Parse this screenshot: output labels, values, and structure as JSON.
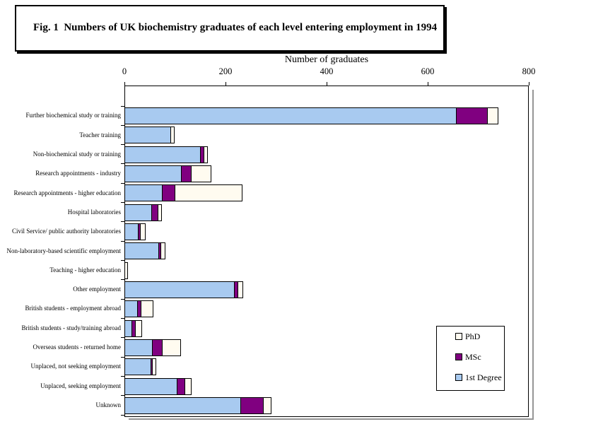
{
  "title": "Fig. 1  Numbers of UK biochemistry graduates of each level entering employment in 1994",
  "axis": {
    "title": "Number of graduates"
  },
  "legend": [
    {
      "label": "PhD",
      "color": "#FFFBF0"
    },
    {
      "label": "MSc",
      "color": "#800080"
    },
    {
      "label": "1st Degree",
      "color": "#A8CAF0"
    }
  ],
  "colors": {
    "bar_border": "#000000",
    "plot_shadow": "#969696",
    "background": "#FFFFFF",
    "phd": "#FFFBF0",
    "msc": "#800080",
    "first_degree": "#A8CAF0"
  },
  "chart_data": {
    "type": "bar",
    "orientation": "horizontal",
    "stacked": true,
    "title": "Fig. 1  Numbers of UK biochemistry graduates of each level entering employment in 1994",
    "xlabel": "Number of graduates",
    "xlim": [
      0,
      800
    ],
    "x_ticks": [
      0,
      200,
      400,
      600,
      800
    ],
    "grid": false,
    "legend_position": "inside-bottom-right",
    "categories": [
      "Further biochemical study or training",
      "Teacher training",
      "Non-biochemical study or training",
      "Research appointments - industry",
      "Research appointments - higher education",
      "Hospital laboratories",
      "Civil Service/ public authority laboratories",
      "Non-laboratory-based scientific employment",
      "Teaching - higher education",
      "Other employment",
      "British students - employment abroad",
      "British students - study/training abroad",
      "Overseas students - returned home",
      "Unplaced, not seeking employment",
      "Unplaced, seeking employment",
      "Unknown"
    ],
    "series": [
      {
        "name": "1st Degree",
        "color": "#A8CAF0",
        "values": [
          655,
          90,
          148,
          110,
          73,
          52,
          25,
          66,
          0,
          215,
          24,
          13,
          53,
          50,
          102,
          228
        ]
      },
      {
        "name": "MSc",
        "color": "#800080",
        "values": [
          60,
          0,
          6,
          18,
          24,
          11,
          3,
          3,
          0,
          6,
          6,
          6,
          18,
          2,
          14,
          43
        ]
      },
      {
        "name": "PhD",
        "color": "#FFFBF0",
        "values": [
          20,
          5,
          6,
          38,
          131,
          6,
          8,
          7,
          4,
          8,
          22,
          11,
          35,
          5,
          11,
          14
        ]
      }
    ]
  }
}
